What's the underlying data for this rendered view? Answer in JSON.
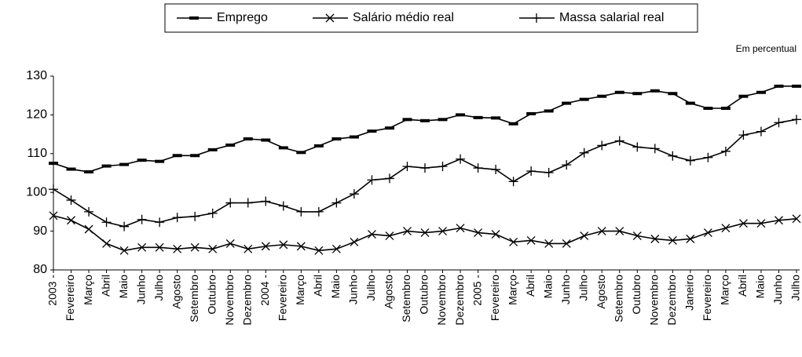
{
  "chart_data": {
    "type": "line",
    "note": "Em percentual",
    "categories": [
      "2003 -",
      "Fevereiro",
      "Março",
      "Abril",
      "Maio",
      "Junho",
      "Julho",
      "Agosto",
      "Setembro",
      "Outubro",
      "Novembro",
      "Dezembro",
      "2004 -",
      "Fevereiro",
      "Março",
      "Abril",
      "Maio",
      "Junho",
      "Julho",
      "Agosto",
      "Setembro",
      "Outubro",
      "Novembro",
      "Dezembro",
      "2005 -",
      "Fevereiro",
      "Março",
      "Abril",
      "Maio",
      "Junho",
      "Julho",
      "Agosto",
      "Setembro",
      "Outubro",
      "Novembro",
      "Dezembro",
      "Janeiro",
      "Fevereiro",
      "Março",
      "Abril",
      "Maio",
      "Junho",
      "Julho"
    ],
    "series": [
      {
        "name": "Emprego",
        "color": "#000000",
        "marker": "dash",
        "values": [
          107.5,
          106,
          105.3,
          106.8,
          107.2,
          108.3,
          108,
          109.5,
          109.5,
          111,
          112.2,
          113.8,
          113.5,
          111.5,
          110.3,
          112,
          113.8,
          114.3,
          115.8,
          116.6,
          118.8,
          118.5,
          118.8,
          120,
          119.3,
          119.2,
          117.7,
          120.3,
          121,
          123,
          124,
          124.8,
          125.8,
          125.5,
          126.2,
          125.5,
          123,
          121.7,
          121.7,
          124.8,
          125.8,
          127.4,
          127.4
        ]
      },
      {
        "name": "Salário médio real",
        "color": "#000000",
        "marker": "x",
        "values": [
          94,
          92.8,
          90.5,
          86.8,
          85,
          85.8,
          85.8,
          85.4,
          85.8,
          85.4,
          86.8,
          85.4,
          86.1,
          86.5,
          86.1,
          85,
          85.4,
          87.2,
          89.2,
          88.8,
          90,
          89.6,
          90,
          90.8,
          89.6,
          89.2,
          87.2,
          87.6,
          86.8,
          86.8,
          88.8,
          90,
          90,
          88.8,
          88,
          87.6,
          88,
          89.6,
          90.8,
          92,
          92,
          92.8,
          93.2
        ]
      },
      {
        "name": "Massa salarial real",
        "color": "#000000",
        "marker": "plus",
        "values": [
          100.8,
          98,
          95,
          92.3,
          91.2,
          93,
          92.3,
          93.5,
          93.8,
          94.6,
          97.3,
          97.3,
          97.7,
          96.5,
          95,
          95,
          97.3,
          99.6,
          103.2,
          103.6,
          106.7,
          106.3,
          106.7,
          108.6,
          106.3,
          105.9,
          102.8,
          105.5,
          105.1,
          107.1,
          110.2,
          112.1,
          113.3,
          111.7,
          111.3,
          109.4,
          108.2,
          109,
          110.6,
          114.8,
          115.7,
          118,
          118.8
        ]
      }
    ],
    "ylim": [
      80,
      130
    ],
    "yticks": [
      80,
      90,
      100,
      110,
      120,
      130
    ]
  }
}
